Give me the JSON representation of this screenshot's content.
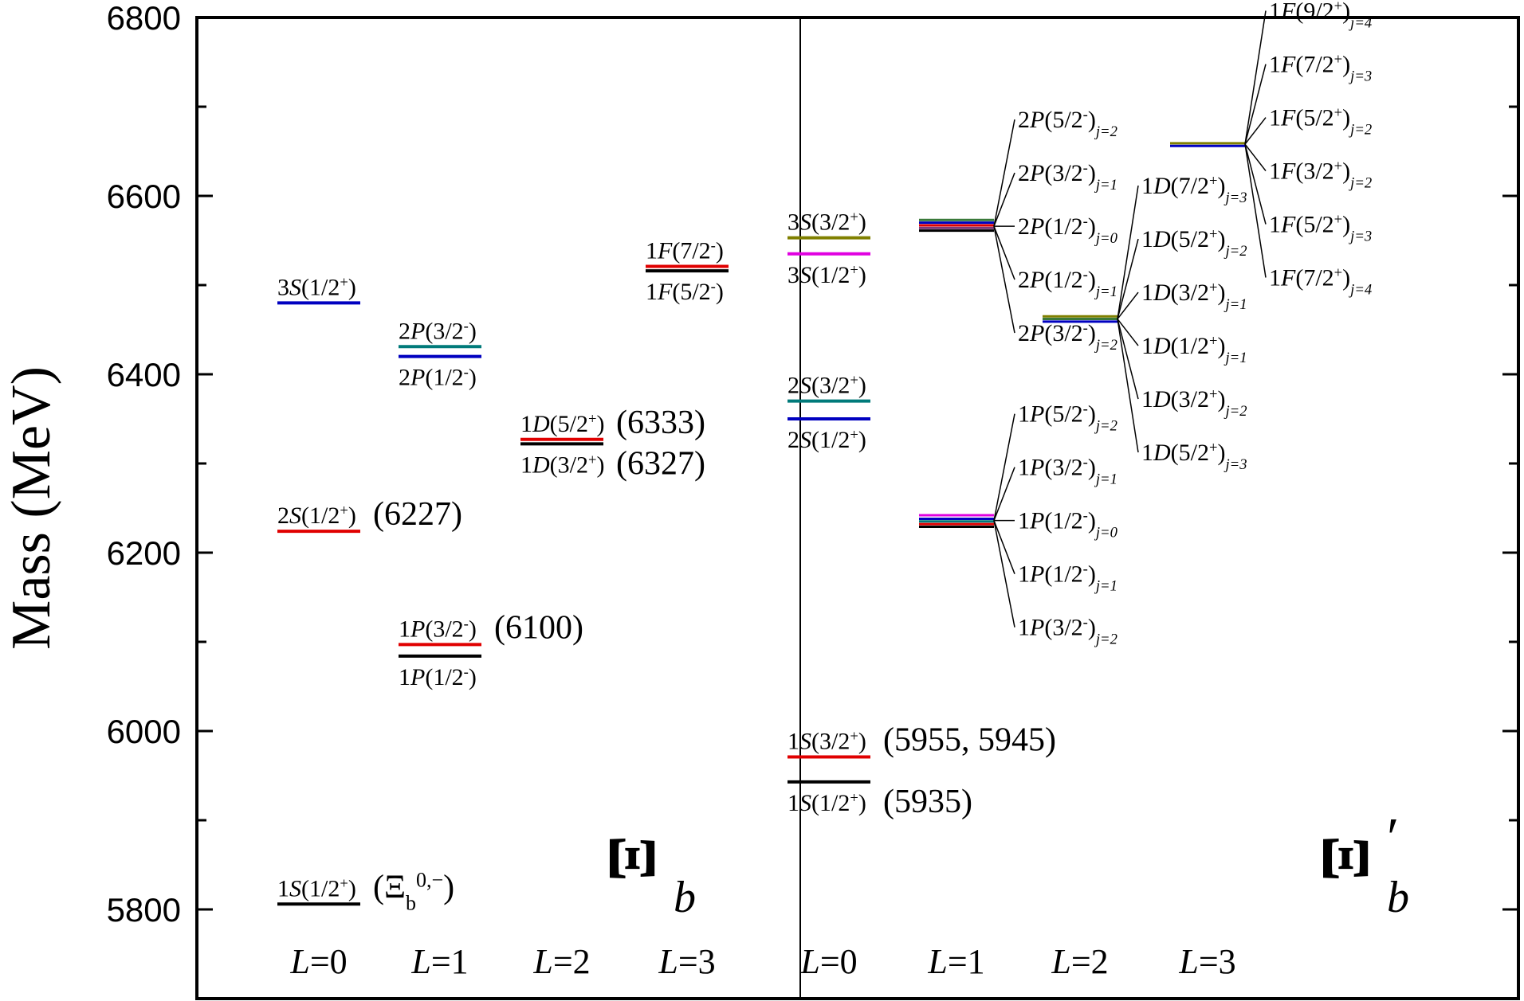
{
  "chart_data": {
    "type": "level-diagram",
    "ylabel": "Mass (MeV)",
    "ylim": [
      5700,
      6800
    ],
    "yticks": [
      "5800",
      "6000",
      "6200",
      "6400",
      "6600",
      "6800"
    ],
    "colors": {
      "black": "#000000",
      "red": "#e00000",
      "blue": "#0000c0",
      "teal": "#007a7a",
      "magenta": "#e000e0",
      "olive": "#808000",
      "green": "#3a7a3a",
      "purple": "#7a3a7a"
    },
    "panels": [
      {
        "id": "xi-b",
        "symbol": "Ξ",
        "subscript": "b",
        "prime": false,
        "columns": [
          "L=0",
          "L=1",
          "L=2",
          "L=3"
        ],
        "levels": [
          {
            "col": 0,
            "mass": 5806,
            "color": "black",
            "label": "1S(1/2+)",
            "label_pos": "above",
            "exp": "(Ξb0,−)"
          },
          {
            "col": 0,
            "mass": 6224,
            "color": "red",
            "label": "2S(1/2+)",
            "label_pos": "above",
            "exp": "(6227)"
          },
          {
            "col": 0,
            "mass": 6480,
            "color": "blue",
            "label": "3S(1/2+)",
            "label_pos": "above",
            "exp": ""
          },
          {
            "col": 1,
            "mass": 6084,
            "color": "black",
            "label": "1P(1/2-)",
            "label_pos": "below",
            "exp": ""
          },
          {
            "col": 1,
            "mass": 6097,
            "color": "red",
            "label": "1P(3/2-)",
            "label_pos": "above",
            "exp": "(6100)"
          },
          {
            "col": 1,
            "mass": 6420,
            "color": "blue",
            "label": "2P(1/2-)",
            "label_pos": "below",
            "exp": ""
          },
          {
            "col": 1,
            "mass": 6431,
            "color": "teal",
            "label": "2P(3/2-)",
            "label_pos": "above",
            "exp": ""
          },
          {
            "col": 2,
            "mass": 6322,
            "color": "black",
            "label": "1D(3/2+)",
            "label_pos": "below",
            "exp": "(6327)"
          },
          {
            "col": 2,
            "mass": 6327,
            "color": "red",
            "label": "1D(5/2+)",
            "label_pos": "above",
            "exp": "(6333)"
          },
          {
            "col": 3,
            "mass": 6516,
            "color": "black",
            "label": "1F(5/2-)",
            "label_pos": "below",
            "exp": ""
          },
          {
            "col": 3,
            "mass": 6521,
            "color": "red",
            "label": "1F(7/2-)",
            "label_pos": "above",
            "exp": ""
          }
        ]
      },
      {
        "id": "xi-b-prime",
        "symbol": "Ξ",
        "subscript": "b",
        "prime": true,
        "columns": [
          "L=0",
          "L=1",
          "L=2",
          "L=3"
        ],
        "levels": [
          {
            "col": 0,
            "mass": 5943,
            "color": "black",
            "label": "1S(1/2+)",
            "label_pos": "below",
            "exp": "(5935)"
          },
          {
            "col": 0,
            "mass": 5971,
            "color": "red",
            "label": "1S(3/2+)",
            "label_pos": "above",
            "exp": "(5955, 5945)"
          },
          {
            "col": 0,
            "mass": 6350,
            "color": "blue",
            "label": "2S(1/2+)",
            "label_pos": "below",
            "exp": ""
          },
          {
            "col": 0,
            "mass": 6370,
            "color": "teal",
            "label": "2S(3/2+)",
            "label_pos": "above",
            "exp": ""
          },
          {
            "col": 0,
            "mass": 6535,
            "color": "magenta",
            "label": "3S(1/2+)",
            "label_pos": "below",
            "exp": ""
          },
          {
            "col": 0,
            "mass": 6553,
            "color": "olive",
            "label": "3S(3/2+)",
            "label_pos": "above",
            "exp": ""
          }
        ],
        "multiplets": [
          {
            "col": 1,
            "center": 6236,
            "lines": [
              {
                "mass": 6229,
                "color": "black"
              },
              {
                "mass": 6232,
                "color": "red"
              },
              {
                "mass": 6235,
                "color": "teal"
              },
              {
                "mass": 6238,
                "color": "blue"
              },
              {
                "mass": 6242,
                "color": "magenta"
              }
            ],
            "labels": [
              "1P(5/2-)j=2",
              "1P(3/2-)j=1",
              "1P(1/2-)j=0",
              "1P(1/2-)j=1",
              "1P(3/2-)j=2"
            ]
          },
          {
            "col": 1,
            "center": 6566,
            "lines": [
              {
                "mass": 6561,
                "color": "black"
              },
              {
                "mass": 6564,
                "color": "purple"
              },
              {
                "mass": 6567,
                "color": "red"
              },
              {
                "mass": 6570,
                "color": "blue"
              },
              {
                "mass": 6573,
                "color": "green"
              }
            ],
            "labels": [
              "2P(5/2-)j=2",
              "2P(3/2-)j=1",
              "2P(1/2-)j=0",
              "2P(1/2-)j=1",
              "2P(3/2-)j=2"
            ]
          },
          {
            "col": 2,
            "center": 6462,
            "lines": [
              {
                "mass": 6459,
                "color": "blue"
              },
              {
                "mass": 6462,
                "color": "green"
              },
              {
                "mass": 6465,
                "color": "olive"
              }
            ],
            "labels": [
              "1D(7/2+)j=3",
              "1D(5/2+)j=2",
              "1D(3/2+)j=1",
              "1D(1/2+)j=1",
              "1D(3/2+)j=2",
              "1D(5/2+)j=3"
            ]
          },
          {
            "col": 3,
            "center": 6658,
            "lines": [
              {
                "mass": 6656,
                "color": "blue"
              },
              {
                "mass": 6659,
                "color": "olive"
              }
            ],
            "labels": [
              "1F(9/2+)j=4",
              "1F(7/2+)j=3",
              "1F(5/2+)j=2",
              "1F(3/2+)j=2",
              "1F(5/2+)j=3",
              "1F(7/2+)j=4"
            ]
          }
        ]
      }
    ]
  }
}
